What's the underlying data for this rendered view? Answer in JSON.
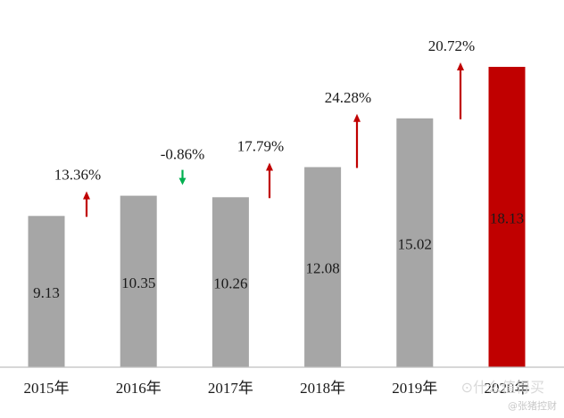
{
  "chart_data": {
    "type": "bar",
    "categories": [
      "2015年",
      "2016年",
      "2017年",
      "2018年",
      "2019年",
      "2020年"
    ],
    "values": [
      9.13,
      10.35,
      10.26,
      12.08,
      15.02,
      18.13
    ],
    "value_labels": [
      "9.13",
      "10.35",
      "10.26",
      "12.08",
      "15.02",
      "18.13"
    ],
    "growth": [
      {
        "label": "13.36%",
        "value": 13.36,
        "direction": "up"
      },
      {
        "label": "-0.86%",
        "value": -0.86,
        "direction": "down"
      },
      {
        "label": "17.79%",
        "value": 17.79,
        "direction": "up"
      },
      {
        "label": "24.28%",
        "value": 24.28,
        "direction": "up"
      },
      {
        "label": "20.72%",
        "value": 20.72,
        "direction": "up"
      }
    ],
    "title": "",
    "xlabel": "",
    "ylabel": "",
    "ylim": [
      0,
      18.13
    ],
    "grid": false,
    "legend": "none",
    "colors": {
      "bar": "#a6a6a6",
      "highlight_bar": "#c00000",
      "up_arrow": "#c00000",
      "down_arrow": "#00b050",
      "axis": "#bfbfbf",
      "text": "#1a1a1a"
    },
    "highlight_index": 5
  },
  "watermark": {
    "main": "⊙什么值得买",
    "sub": "@张猪控财"
  }
}
